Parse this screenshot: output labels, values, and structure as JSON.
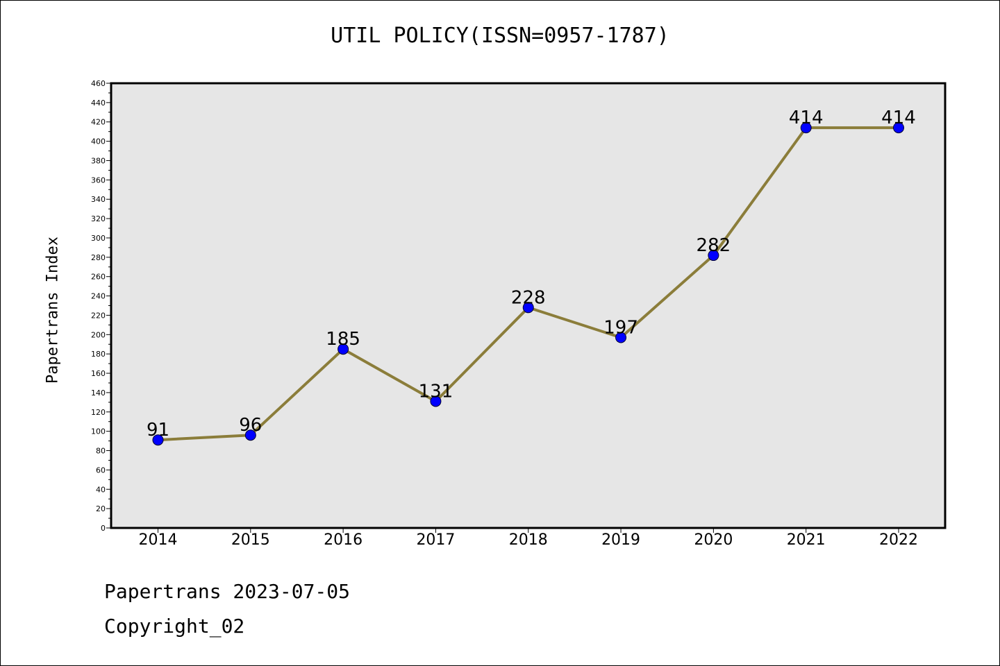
{
  "colors": {
    "line": "#8b7d3a",
    "marker": "#0000ff",
    "marker_edge": "#000033",
    "plot_background": "#e6e6e6",
    "axis": "#000000"
  },
  "footer": {
    "date_line": "Papertrans 2023-07-05",
    "copyright_line": "Copyright_02"
  },
  "chart_data": {
    "type": "line",
    "title": "UTIL POLICY(ISSN=0957-1787)",
    "xlabel": "",
    "ylabel": "Papertrans Index",
    "categories": [
      "2014",
      "2015",
      "2016",
      "2017",
      "2018",
      "2019",
      "2020",
      "2021",
      "2022"
    ],
    "series": [
      {
        "values": [
          91,
          96,
          185,
          131,
          228,
          197,
          282,
          414,
          414
        ]
      }
    ],
    "data_labels": [
      "91",
      "96",
      "185",
      "131",
      "228",
      "197",
      "282",
      "414",
      "414"
    ],
    "ylim": [
      0,
      460
    ],
    "y_major_step": 20,
    "y_minor_step": 10,
    "y_tick_labels": [
      "0",
      "20",
      "40",
      "60",
      "80",
      "100",
      "120",
      "140",
      "160",
      "180",
      "200",
      "220",
      "240",
      "260",
      "280",
      "300",
      "320",
      "340",
      "360",
      "380",
      "400",
      "420",
      "440",
      "460"
    ],
    "grid": false,
    "legend": "none",
    "markers": true
  }
}
